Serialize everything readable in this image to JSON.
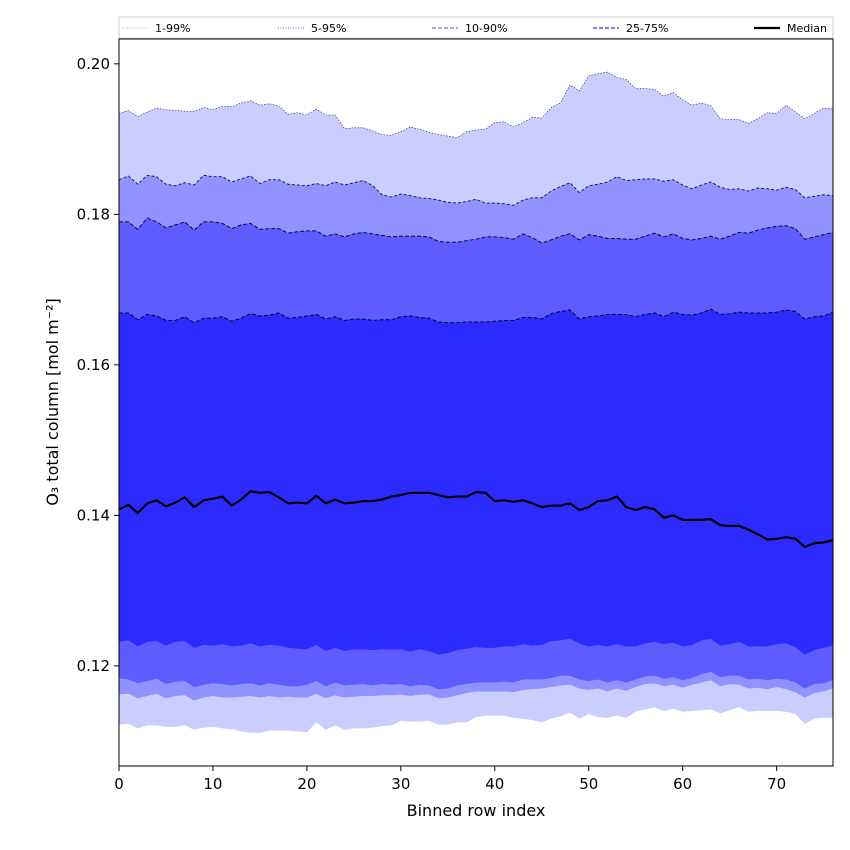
{
  "chart_data": {
    "type": "area",
    "xlabel": "Binned row index",
    "ylabel": "O₃ total column [mol m⁻²]",
    "xlim": [
      0,
      76
    ],
    "ylim": [
      0.1067,
      0.2033
    ],
    "x_ticks": [
      "0",
      "10",
      "20",
      "30",
      "40",
      "50",
      "60",
      "70"
    ],
    "y_ticks": [
      "0.12",
      "0.14",
      "0.16",
      "0.18",
      "0.20"
    ],
    "legend": {
      "placement": "top",
      "entries": [
        {
          "label": "1-99%",
          "style": "dotted",
          "color": "#cccccc"
        },
        {
          "label": "5-95%",
          "style": "dotted",
          "color": "#8888dd"
        },
        {
          "label": "10-90%",
          "style": "dashed",
          "color": "#7777ee"
        },
        {
          "label": "25-75%",
          "style": "dashed",
          "color": "#3333dd"
        },
        {
          "label": "Median",
          "style": "solid",
          "color": "#000000"
        }
      ]
    },
    "colors": {
      "band_1_99": "#ffffff",
      "band_5_95": "#cccdff",
      "band_10_90": "#9093ff",
      "band_25_75": "#5c5cff",
      "band_core": "#2b2bff",
      "median": "#000000"
    },
    "x": [
      0,
      1,
      2,
      3,
      4,
      5,
      6,
      7,
      8,
      9,
      10,
      11,
      12,
      13,
      14,
      15,
      16,
      17,
      18,
      19,
      20,
      21,
      22,
      23,
      24,
      25,
      26,
      27,
      28,
      29,
      30,
      31,
      32,
      33,
      34,
      35,
      36,
      37,
      38,
      39,
      40,
      41,
      42,
      43,
      44,
      45,
      46,
      47,
      48,
      49,
      50,
      51,
      52,
      53,
      54,
      55,
      56,
      57,
      58,
      59,
      60,
      61,
      62,
      63,
      64,
      65,
      66,
      67,
      68,
      69,
      70,
      71,
      72,
      73,
      74,
      75,
      76
    ],
    "upper_5_95": [
      0.1934,
      0.1938,
      0.193,
      0.1936,
      0.1941,
      0.1939,
      0.1938,
      0.1937,
      0.1937,
      0.1942,
      0.1939,
      0.1944,
      0.1943,
      0.1948,
      0.1951,
      0.1945,
      0.1947,
      0.1944,
      0.1933,
      0.1935,
      0.1932,
      0.194,
      0.1932,
      0.1932,
      0.1914,
      0.1915,
      0.1915,
      0.1911,
      0.1906,
      0.1905,
      0.191,
      0.1916,
      0.1913,
      0.1909,
      0.1906,
      0.1904,
      0.1902,
      0.191,
      0.1912,
      0.1913,
      0.1922,
      0.1923,
      0.1916,
      0.1922,
      0.1929,
      0.1928,
      0.1942,
      0.1948,
      0.1972,
      0.1964,
      0.1984,
      0.1987,
      0.1989,
      0.1982,
      0.1979,
      0.1967,
      0.1967,
      0.1966,
      0.1957,
      0.1962,
      0.1952,
      0.1945,
      0.1948,
      0.1944,
      0.1927,
      0.1926,
      0.1926,
      0.1921,
      0.1927,
      0.1935,
      0.1934,
      0.1945,
      0.1936,
      0.1927,
      0.1934,
      0.1941,
      0.194
    ],
    "upper_10_90": [
      0.1846,
      0.1851,
      0.184,
      0.1852,
      0.185,
      0.184,
      0.1838,
      0.1842,
      0.1839,
      0.1852,
      0.185,
      0.185,
      0.1843,
      0.1847,
      0.1851,
      0.1841,
      0.1846,
      0.1846,
      0.184,
      0.1839,
      0.1838,
      0.1841,
      0.1838,
      0.1843,
      0.1839,
      0.1842,
      0.1845,
      0.1838,
      0.1826,
      0.1823,
      0.1827,
      0.1825,
      0.1822,
      0.1821,
      0.1819,
      0.1816,
      0.1815,
      0.1817,
      0.182,
      0.1815,
      0.1815,
      0.1814,
      0.1812,
      0.1819,
      0.1822,
      0.1822,
      0.1831,
      0.1837,
      0.1842,
      0.1829,
      0.1838,
      0.184,
      0.1843,
      0.185,
      0.1845,
      0.1846,
      0.1847,
      0.1847,
      0.1844,
      0.1846,
      0.1839,
      0.1834,
      0.1839,
      0.1843,
      0.1836,
      0.1833,
      0.1834,
      0.1831,
      0.1835,
      0.1834,
      0.1832,
      0.1836,
      0.1833,
      0.1822,
      0.1824,
      0.1826,
      0.1825
    ],
    "upper_25_75": [
      0.179,
      0.179,
      0.178,
      0.1795,
      0.179,
      0.1782,
      0.1786,
      0.179,
      0.1779,
      0.179,
      0.179,
      0.1788,
      0.1781,
      0.1786,
      0.1788,
      0.178,
      0.1781,
      0.1781,
      0.1775,
      0.1777,
      0.1778,
      0.1778,
      0.1771,
      0.1774,
      0.177,
      0.1774,
      0.1776,
      0.1774,
      0.1772,
      0.177,
      0.1771,
      0.1771,
      0.1771,
      0.177,
      0.1764,
      0.1763,
      0.1763,
      0.1765,
      0.1767,
      0.177,
      0.177,
      0.1769,
      0.1767,
      0.1774,
      0.1769,
      0.1762,
      0.1766,
      0.1771,
      0.1774,
      0.1766,
      0.1773,
      0.1771,
      0.1768,
      0.1768,
      0.1767,
      0.1767,
      0.1771,
      0.1775,
      0.177,
      0.1774,
      0.1768,
      0.1766,
      0.1768,
      0.1771,
      0.1767,
      0.1771,
      0.1776,
      0.1775,
      0.1779,
      0.1782,
      0.1784,
      0.1785,
      0.1781,
      0.1767,
      0.177,
      0.1773,
      0.1776
    ],
    "upper_core": [
      0.1669,
      0.1669,
      0.166,
      0.1667,
      0.1665,
      0.1659,
      0.1659,
      0.1664,
      0.1656,
      0.1662,
      0.1662,
      0.1664,
      0.1658,
      0.1662,
      0.1668,
      0.1665,
      0.1666,
      0.1669,
      0.1662,
      0.1663,
      0.1665,
      0.1667,
      0.1661,
      0.1664,
      0.1659,
      0.1661,
      0.1661,
      0.1659,
      0.166,
      0.166,
      0.1664,
      0.1665,
      0.1663,
      0.1662,
      0.1657,
      0.1656,
      0.1656,
      0.1657,
      0.1657,
      0.1657,
      0.1658,
      0.1659,
      0.1659,
      0.1663,
      0.1663,
      0.1661,
      0.1668,
      0.1671,
      0.1673,
      0.1661,
      0.1664,
      0.1665,
      0.1667,
      0.1667,
      0.1667,
      0.1664,
      0.1667,
      0.1669,
      0.1664,
      0.167,
      0.1667,
      0.1666,
      0.1669,
      0.1674,
      0.1667,
      0.1668,
      0.167,
      0.1669,
      0.1669,
      0.1669,
      0.167,
      0.1673,
      0.1671,
      0.1661,
      0.1664,
      0.1665,
      0.167
    ],
    "median": [
      0.1408,
      0.1414,
      0.1403,
      0.1416,
      0.142,
      0.1412,
      0.1417,
      0.1424,
      0.1411,
      0.142,
      0.1422,
      0.1425,
      0.1413,
      0.1421,
      0.1432,
      0.143,
      0.1431,
      0.1424,
      0.1416,
      0.1417,
      0.1416,
      0.1426,
      0.1416,
      0.1421,
      0.1416,
      0.1417,
      0.1419,
      0.1419,
      0.1421,
      0.1425,
      0.1427,
      0.143,
      0.143,
      0.143,
      0.1427,
      0.1424,
      0.1425,
      0.1425,
      0.1431,
      0.143,
      0.1419,
      0.142,
      0.1418,
      0.142,
      0.1416,
      0.1411,
      0.1413,
      0.1413,
      0.1416,
      0.1407,
      0.1411,
      0.1419,
      0.142,
      0.1425,
      0.1411,
      0.1407,
      0.1411,
      0.1408,
      0.1397,
      0.14,
      0.1394,
      0.1394,
      0.1394,
      0.1395,
      0.1387,
      0.1386,
      0.1386,
      0.1381,
      0.1375,
      0.1368,
      0.1369,
      0.1371,
      0.1369,
      0.1358,
      0.1363,
      0.1364,
      0.1367
    ],
    "lower_core": [
      0.1232,
      0.1234,
      0.1226,
      0.1232,
      0.1233,
      0.1227,
      0.1232,
      0.1233,
      0.1224,
      0.1228,
      0.1227,
      0.1229,
      0.1226,
      0.1227,
      0.123,
      0.1226,
      0.1228,
      0.1227,
      0.1224,
      0.1223,
      0.1222,
      0.1228,
      0.122,
      0.1224,
      0.122,
      0.1222,
      0.1222,
      0.1221,
      0.1222,
      0.1222,
      0.1222,
      0.1219,
      0.1222,
      0.122,
      0.1215,
      0.1217,
      0.1221,
      0.1223,
      0.1225,
      0.1224,
      0.1224,
      0.1226,
      0.1226,
      0.1229,
      0.1227,
      0.1228,
      0.1233,
      0.1234,
      0.1236,
      0.123,
      0.1226,
      0.1228,
      0.1226,
      0.1229,
      0.1226,
      0.1226,
      0.123,
      0.1232,
      0.1229,
      0.1231,
      0.1226,
      0.1228,
      0.1234,
      0.1236,
      0.1227,
      0.1229,
      0.1232,
      0.1226,
      0.1226,
      0.1226,
      0.1229,
      0.123,
      0.1225,
      0.1215,
      0.1221,
      0.1224,
      0.1227
    ],
    "lower_25_75": [
      0.1184,
      0.1182,
      0.1177,
      0.118,
      0.1183,
      0.1176,
      0.1179,
      0.118,
      0.1172,
      0.1175,
      0.1177,
      0.1176,
      0.1174,
      0.1176,
      0.1177,
      0.1174,
      0.1177,
      0.1175,
      0.1173,
      0.1173,
      0.1175,
      0.118,
      0.1173,
      0.1178,
      0.1174,
      0.1175,
      0.1176,
      0.1174,
      0.1176,
      0.1175,
      0.1176,
      0.1173,
      0.1175,
      0.1174,
      0.1169,
      0.117,
      0.1174,
      0.1176,
      0.1178,
      0.1178,
      0.1178,
      0.1179,
      0.1178,
      0.1182,
      0.1182,
      0.1182,
      0.1184,
      0.1187,
      0.1187,
      0.1182,
      0.118,
      0.1182,
      0.1178,
      0.1181,
      0.1178,
      0.1182,
      0.1186,
      0.1187,
      0.1183,
      0.1185,
      0.1181,
      0.1184,
      0.1189,
      0.1192,
      0.1185,
      0.1187,
      0.1187,
      0.1182,
      0.1183,
      0.1181,
      0.1183,
      0.1182,
      0.1178,
      0.117,
      0.1176,
      0.1177,
      0.1181
    ],
    "lower_10_90": [
      0.1162,
      0.1163,
      0.1157,
      0.116,
      0.1163,
      0.1157,
      0.116,
      0.1161,
      0.1154,
      0.1158,
      0.116,
      0.1158,
      0.1158,
      0.1159,
      0.116,
      0.1158,
      0.116,
      0.1158,
      0.1159,
      0.1158,
      0.1158,
      0.1163,
      0.1157,
      0.1161,
      0.1158,
      0.1159,
      0.116,
      0.116,
      0.1161,
      0.1161,
      0.1162,
      0.116,
      0.1162,
      0.1162,
      0.1157,
      0.1158,
      0.1161,
      0.1164,
      0.1166,
      0.1166,
      0.1166,
      0.1166,
      0.1165,
      0.1168,
      0.1169,
      0.117,
      0.1172,
      0.1174,
      0.1175,
      0.117,
      0.1168,
      0.117,
      0.1166,
      0.117,
      0.1167,
      0.1172,
      0.1176,
      0.1177,
      0.1173,
      0.1175,
      0.1171,
      0.1175,
      0.1178,
      0.1181,
      0.1173,
      0.1176,
      0.1175,
      0.117,
      0.1171,
      0.1169,
      0.1172,
      0.1169,
      0.1165,
      0.1158,
      0.1164,
      0.1166,
      0.117
    ],
    "lower_5_95": [
      0.1122,
      0.1123,
      0.1117,
      0.1121,
      0.1121,
      0.1119,
      0.1119,
      0.1121,
      0.1115,
      0.1118,
      0.1119,
      0.1117,
      0.1116,
      0.1113,
      0.1111,
      0.1111,
      0.1114,
      0.1114,
      0.1114,
      0.1113,
      0.1112,
      0.1125,
      0.1115,
      0.1121,
      0.1115,
      0.1117,
      0.1117,
      0.1118,
      0.112,
      0.1121,
      0.1127,
      0.1126,
      0.1126,
      0.1127,
      0.1122,
      0.1122,
      0.1125,
      0.1125,
      0.1132,
      0.1134,
      0.1134,
      0.1134,
      0.1131,
      0.113,
      0.1128,
      0.1125,
      0.113,
      0.1133,
      0.1138,
      0.113,
      0.1136,
      0.1132,
      0.1131,
      0.1134,
      0.1131,
      0.1139,
      0.1142,
      0.1145,
      0.114,
      0.1143,
      0.1139,
      0.114,
      0.1141,
      0.1142,
      0.1137,
      0.1141,
      0.1145,
      0.1139,
      0.114,
      0.114,
      0.114,
      0.1139,
      0.1136,
      0.1123,
      0.113,
      0.1131,
      0.1131
    ]
  }
}
